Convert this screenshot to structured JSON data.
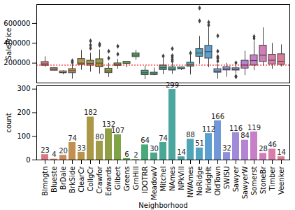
{
  "chart_data": [
    {
      "type": "box",
      "y_label": "SalePrice",
      "tick_labels": "y",
      "categories": [
        "Blmngtn",
        "Blueste",
        "BrDale",
        "BrkSide",
        "ClearCr",
        "CollgCr",
        "Crawfor",
        "Edwards",
        "Gilbert",
        "Greens",
        "GrnHill",
        "IDOTRR",
        "MeadowV",
        "Mitchel",
        "NAmes",
        "NPkVill",
        "NWAmes",
        "NoRidge",
        "NridgHt",
        "OldTown",
        "SWISU",
        "Sawyer",
        "SawyerW",
        "Somerst",
        "StoneBr",
        "Timber",
        "Veenker"
      ],
      "boxes": [
        {
          "q1": 175000,
          "median": 192000,
          "q3": 212000,
          "whislo": 160000,
          "whishi": 265000,
          "outliers": []
        },
        {
          "q1": 125000,
          "median": 137000,
          "q3": 150000,
          "whislo": 124000,
          "whishi": 151000,
          "outliers": []
        },
        {
          "q1": 100000,
          "median": 106000,
          "q3": 118000,
          "whislo": 83000,
          "whishi": 125000,
          "outliers": []
        },
        {
          "q1": 100000,
          "median": 124000,
          "q3": 141000,
          "whislo": 40000,
          "whishi": 195000,
          "outliers": [
            207000,
            223000
          ]
        },
        {
          "q1": 183000,
          "median": 200000,
          "q3": 242000,
          "whislo": 130000,
          "whishi": 328000,
          "outliers": []
        },
        {
          "q1": 176000,
          "median": 198000,
          "q3": 225000,
          "whislo": 110000,
          "whishi": 300000,
          "outliers": [
            350000,
            380000,
            424000
          ]
        },
        {
          "q1": 160000,
          "median": 200000,
          "q3": 240000,
          "whislo": 90000,
          "whishi": 335000,
          "outliers": [
            380000,
            392000
          ]
        },
        {
          "q1": 101000,
          "median": 121000,
          "q3": 145000,
          "whislo": 58000,
          "whishi": 200000,
          "outliers": [
            250000,
            320000
          ]
        },
        {
          "q1": 174000,
          "median": 182000,
          "q3": 198000,
          "whislo": 140000,
          "whishi": 240000,
          "outliers": [
            290000,
            370000
          ]
        },
        {
          "q1": 193000,
          "median": 198000,
          "q3": 214000,
          "whislo": 155000,
          "whishi": 214000,
          "outliers": []
        },
        {
          "q1": 262000,
          "median": 280000,
          "q3": 298000,
          "whislo": 230000,
          "whishi": 330000,
          "outliers": []
        },
        {
          "q1": 82000,
          "median": 103000,
          "q3": 125000,
          "whislo": 35000,
          "whishi": 170000,
          "outliers": []
        },
        {
          "q1": 83000,
          "median": 89000,
          "q3": 105000,
          "whislo": 75000,
          "whishi": 151000,
          "outliers": []
        },
        {
          "q1": 132000,
          "median": 153000,
          "q3": 177000,
          "whislo": 85000,
          "whishi": 250000,
          "outliers": [
            271000
          ]
        },
        {
          "q1": 127000,
          "median": 140000,
          "q3": 158000,
          "whislo": 88000,
          "whishi": 205000,
          "outliers": [
            220000,
            236000,
            260000,
            275000,
            345000
          ]
        },
        {
          "q1": 140000,
          "median": 146000,
          "q3": 157000,
          "whislo": 127000,
          "whishi": 160000,
          "outliers": []
        },
        {
          "q1": 166000,
          "median": 182000,
          "q3": 205000,
          "whislo": 82000,
          "whishi": 275000,
          "outliers": [
            300000
          ]
        },
        {
          "q1": 265000,
          "median": 301000,
          "q3": 342000,
          "whislo": 190000,
          "whishi": 470000,
          "outliers": [
            625000,
            755000
          ]
        },
        {
          "q1": 247000,
          "median": 315000,
          "q3": 375000,
          "whislo": 155000,
          "whishi": 560000,
          "outliers": [
            582000,
            611000
          ]
        },
        {
          "q1": 105000,
          "median": 119000,
          "q3": 140000,
          "whislo": 40000,
          "whishi": 190000,
          "outliers": [
            220000,
            250000,
            265000,
            320000,
            475000
          ]
        },
        {
          "q1": 128000,
          "median": 140000,
          "q3": 160000,
          "whislo": 60000,
          "whishi": 200000,
          "outliers": []
        },
        {
          "q1": 127000,
          "median": 135000,
          "q3": 149000,
          "whislo": 92000,
          "whishi": 190000,
          "outliers": [
            62000,
            67000,
            202000
          ]
        },
        {
          "q1": 146000,
          "median": 180000,
          "q3": 225000,
          "whislo": 76000,
          "whishi": 320000,
          "outliers": []
        },
        {
          "q1": 177000,
          "median": 225000,
          "q3": 280000,
          "whislo": 125000,
          "whishi": 420000,
          "outliers": [
            450000,
            468000
          ]
        },
        {
          "q1": 213000,
          "median": 279000,
          "q3": 377000,
          "whislo": 170000,
          "whishi": 556000,
          "outliers": []
        },
        {
          "q1": 187000,
          "median": 229000,
          "q3": 285000,
          "whislo": 138000,
          "whishi": 400000,
          "outliers": []
        },
        {
          "q1": 184000,
          "median": 218000,
          "q3": 290000,
          "whislo": 162000,
          "whishi": 385000,
          "outliers": []
        }
      ],
      "colors": [
        "#d87a85",
        "#d98571",
        "#cc8a5c",
        "#c18f4f",
        "#b7944a",
        "#ab9847",
        "#9f9b46",
        "#909f46",
        "#7fa347",
        "#66a84b",
        "#4eaa63",
        "#4aa97a",
        "#4aa889",
        "#4ba795",
        "#4ca6a0",
        "#4da5aa",
        "#4fa4b5",
        "#52a2c2",
        "#5a9fd2",
        "#7199d9",
        "#8c92d9",
        "#a18bd8",
        "#b585d4",
        "#c77fc8",
        "#d27dba",
        "#d87ca9",
        "#da7b98"
      ],
      "marker": "diamond",
      "reference_line": {
        "value": 180000,
        "color": "red",
        "line_style": "dotted"
      },
      "ylim": [
        0,
        790000
      ],
      "yticks": [
        200000,
        400000,
        600000
      ]
    },
    {
      "type": "bar",
      "x_label": "Neighborhood",
      "y_label": "count",
      "categories": [
        "Blmngtn",
        "Blueste",
        "BrDale",
        "BrkSide",
        "ClearCr",
        "CollgCr",
        "Crawfor",
        "Edwards",
        "Gilbert",
        "Greens",
        "GrnHill",
        "IDOTRR",
        "MeadowV",
        "Mitchel",
        "NAmes",
        "NPkVill",
        "NWAmes",
        "NoRidge",
        "NridgHt",
        "OldTown",
        "SWISU",
        "Sawyer",
        "SawyerW",
        "Somerst",
        "StoneBr",
        "Timber",
        "Veenker"
      ],
      "values": [
        23,
        4,
        20,
        74,
        33,
        182,
        80,
        132,
        107,
        6,
        2,
        64,
        30,
        74,
        299,
        14,
        88,
        51,
        112,
        166,
        32,
        116,
        84,
        119,
        28,
        46,
        14
      ],
      "colors": [
        "#d87a85",
        "#d98571",
        "#cc8a5c",
        "#c18f4f",
        "#b7944a",
        "#ab9847",
        "#9f9b46",
        "#909f46",
        "#7fa347",
        "#66a84b",
        "#4eaa63",
        "#4aa97a",
        "#4aa889",
        "#4ba795",
        "#4ca6a0",
        "#4da5aa",
        "#4fa4b5",
        "#52a2c2",
        "#5a9fd2",
        "#7199d9",
        "#8c92d9",
        "#a18bd8",
        "#b585d4",
        "#c77fc8",
        "#d27dba",
        "#d87ca9",
        "#da7b98"
      ],
      "data_labels": true,
      "ylim": [
        0,
        314
      ],
      "yticks": [
        0,
        100,
        200,
        300
      ]
    }
  ]
}
